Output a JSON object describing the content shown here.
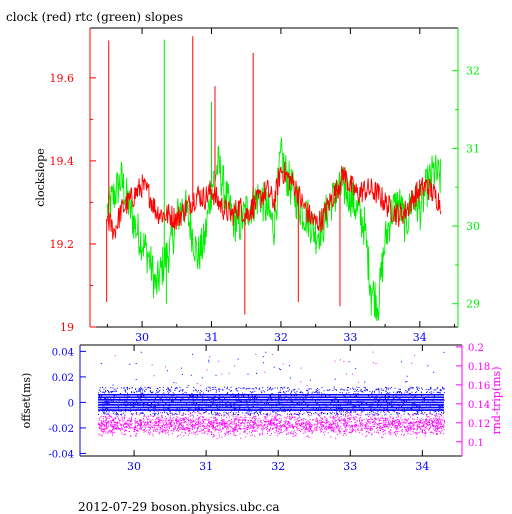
{
  "title": "clock (red) rtc (green) slopes",
  "footer": "2012-07-29  boson.physics.ubc.ca",
  "colors": {
    "clock": "#ff0000",
    "rtc": "#00ee00",
    "offset": "#0000ff",
    "rndtrip": "#ff00ff",
    "axis": "#000000"
  },
  "chart_data": [
    {
      "type": "line",
      "ylabel": "clockslope",
      "xlim": [
        29.25,
        34.55
      ],
      "xticks": [
        30,
        31,
        32,
        33,
        34
      ],
      "y_left": {
        "lim": [
          19.0,
          19.72
        ],
        "ticks": [
          19,
          19.2,
          19.4,
          19.6
        ],
        "tick_labels": [
          "19",
          "19.2",
          "19.4",
          "19.6"
        ]
      },
      "y_right": {
        "lim": [
          28.7,
          32.55
        ],
        "ticks": [
          29,
          30,
          31,
          32
        ],
        "tick_labels": [
          "29",
          "30",
          "31",
          "32"
        ]
      },
      "series": [
        {
          "name": "clock",
          "axis": "left",
          "x": [
            29.5,
            29.6,
            29.7,
            29.8,
            29.9,
            30.0,
            30.1,
            30.2,
            30.3,
            30.4,
            30.5,
            30.6,
            30.7,
            30.8,
            30.9,
            31.0,
            31.1,
            31.2,
            31.3,
            31.4,
            31.5,
            31.6,
            31.7,
            31.8,
            31.9,
            32.0,
            32.1,
            32.2,
            32.3,
            32.4,
            32.5,
            32.6,
            32.7,
            32.8,
            32.9,
            33.0,
            33.1,
            33.2,
            33.3,
            33.4,
            33.5,
            33.6,
            33.7,
            33.8,
            33.9,
            34.0,
            34.1,
            34.2,
            34.3
          ],
          "y": [
            19.26,
            19.23,
            19.28,
            19.3,
            19.32,
            19.34,
            19.32,
            19.28,
            19.27,
            19.27,
            19.26,
            19.28,
            19.3,
            19.32,
            19.31,
            19.33,
            19.3,
            19.28,
            19.27,
            19.29,
            19.27,
            19.29,
            19.31,
            19.33,
            19.3,
            19.38,
            19.36,
            19.34,
            19.3,
            19.27,
            19.25,
            19.26,
            19.3,
            19.33,
            19.37,
            19.34,
            19.32,
            19.33,
            19.33,
            19.32,
            19.3,
            19.28,
            19.27,
            19.28,
            19.31,
            19.33,
            19.34,
            19.32,
            19.3
          ],
          "spikes_up": [
            [
              29.52,
              19.69
            ],
            [
              30.73,
              19.7
            ],
            [
              31.6,
              19.66
            ],
            [
              31.05,
              19.58
            ]
          ],
          "spikes_down": [
            [
              29.49,
              19.06
            ],
            [
              31.48,
              19.03
            ],
            [
              32.25,
              19.06
            ],
            [
              32.85,
              19.05
            ]
          ]
        },
        {
          "name": "rtc",
          "axis": "right",
          "x": [
            29.5,
            29.6,
            29.7,
            29.8,
            29.9,
            30.0,
            30.1,
            30.2,
            30.3,
            30.4,
            30.5,
            30.6,
            30.7,
            30.8,
            30.9,
            31.0,
            31.1,
            31.2,
            31.3,
            31.4,
            31.5,
            31.6,
            31.7,
            31.8,
            31.9,
            32.0,
            32.1,
            32.2,
            32.3,
            32.4,
            32.5,
            32.6,
            32.7,
            32.8,
            32.9,
            33.0,
            33.1,
            33.2,
            33.3,
            33.4,
            33.5,
            33.6,
            33.7,
            33.8,
            33.9,
            34.0,
            34.1,
            34.2,
            34.3
          ],
          "y": [
            30.2,
            30.4,
            30.6,
            30.3,
            30.0,
            29.8,
            29.6,
            29.2,
            29.5,
            29.7,
            30.1,
            30.3,
            30.0,
            29.6,
            29.8,
            30.5,
            30.8,
            30.4,
            30.1,
            30.0,
            30.2,
            30.3,
            30.4,
            30.2,
            30.0,
            30.9,
            30.6,
            30.4,
            30.2,
            30.1,
            29.9,
            30.0,
            30.3,
            30.4,
            30.5,
            30.4,
            30.2,
            30.0,
            29.2,
            29.0,
            29.8,
            30.2,
            30.3,
            30.0,
            30.4,
            30.2,
            30.5,
            30.7,
            30.6
          ],
          "spikes_up": [
            [
              30.32,
              32.4
            ],
            [
              31.0,
              31.6
            ]
          ],
          "spikes_down": [
            [
              30.35,
              29.0
            ],
            [
              33.3,
              28.85
            ]
          ]
        }
      ]
    },
    {
      "type": "scatter",
      "xlim": [
        29.25,
        34.55
      ],
      "xticks": [
        30,
        31,
        32,
        33,
        34
      ],
      "y_left": {
        "label": "offset(ms)",
        "lim": [
          -0.042,
          0.045
        ],
        "ticks": [
          -0.04,
          -0.02,
          0,
          0.02,
          0.04
        ],
        "tick_labels": [
          "-0.04",
          "-0.02",
          "0",
          "0.02",
          "0.04"
        ]
      },
      "y_right": {
        "label": "rnd-trip(ms)",
        "lim": [
          0.085,
          0.202
        ],
        "ticks": [
          0.1,
          0.12,
          0.14,
          0.16,
          0.18,
          0.2
        ],
        "tick_labels": [
          "0.1",
          "0.12",
          "0.14",
          "0.16",
          "0.18",
          "0.2"
        ]
      },
      "series": [
        {
          "name": "offset",
          "axis": "left",
          "band_levels": [
            0.006,
            0.004,
            0.002,
            0.0,
            -0.002,
            -0.004,
            -0.006
          ],
          "scatter_range": [
            -0.01,
            0.012
          ],
          "x_range": [
            29.5,
            34.3
          ]
        },
        {
          "name": "rnd-trip",
          "axis": "right",
          "center": 0.118,
          "spread": 0.016,
          "x_range": [
            29.5,
            34.3
          ]
        }
      ]
    }
  ]
}
